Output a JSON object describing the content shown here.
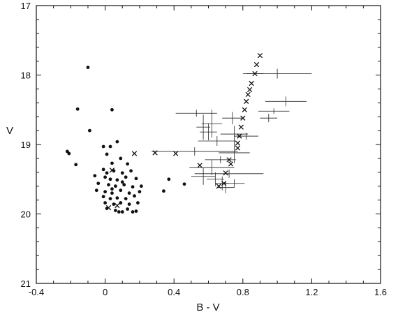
{
  "chart_data": {
    "type": "scatter",
    "title": "",
    "xlabel": "B - V",
    "ylabel": "V",
    "xlim": [
      -0.4,
      1.6
    ],
    "ylim": [
      17,
      21
    ],
    "y_inverted": true,
    "grid": false,
    "xticks": [
      "-0.4",
      "0",
      "0.4",
      "0.8",
      "1.2",
      "1.6"
    ],
    "yticks": [
      "17",
      "18",
      "19",
      "20",
      "21"
    ],
    "xtick_values": [
      -0.4,
      0,
      0.4,
      0.8,
      1.2,
      1.6
    ],
    "ytick_values": [
      17,
      18,
      19,
      20,
      21
    ],
    "marker_styles": {
      "dots": "filled-circle",
      "crosses": "x-with-errorbars"
    },
    "dots": [
      [
        -0.1,
        17.89
      ],
      [
        -0.16,
        18.49
      ],
      [
        0.04,
        18.5
      ],
      [
        -0.09,
        18.8
      ],
      [
        -0.22,
        19.1
      ],
      [
        -0.21,
        19.13
      ],
      [
        -0.17,
        19.29
      ],
      [
        -0.01,
        19.03
      ],
      [
        0.03,
        19.03
      ],
      [
        0.07,
        18.96
      ],
      [
        0.01,
        19.14
      ],
      [
        0.09,
        19.2
      ],
      [
        0.04,
        19.27
      ],
      [
        0.13,
        19.28
      ],
      [
        -0.01,
        19.36
      ],
      [
        0.01,
        19.41
      ],
      [
        0.05,
        19.38
      ],
      [
        0.1,
        19.41
      ],
      [
        0.15,
        19.38
      ],
      [
        -0.06,
        19.45
      ],
      [
        0.0,
        19.47
      ],
      [
        0.03,
        19.5
      ],
      [
        0.07,
        19.51
      ],
      [
        0.12,
        19.47
      ],
      [
        0.18,
        19.49
      ],
      [
        -0.04,
        19.56
      ],
      [
        0.02,
        19.58
      ],
      [
        0.06,
        19.6
      ],
      [
        0.11,
        19.58
      ],
      [
        0.16,
        19.61
      ],
      [
        0.21,
        19.6
      ],
      [
        -0.05,
        19.66
      ],
      [
        0.0,
        19.68
      ],
      [
        0.04,
        19.7
      ],
      [
        0.09,
        19.66
      ],
      [
        0.14,
        19.7
      ],
      [
        0.2,
        19.68
      ],
      [
        -0.01,
        19.75
      ],
      [
        0.03,
        19.78
      ],
      [
        0.07,
        19.77
      ],
      [
        0.12,
        19.78
      ],
      [
        0.17,
        19.74
      ],
      [
        0.0,
        19.84
      ],
      [
        0.05,
        19.86
      ],
      [
        0.09,
        19.84
      ],
      [
        0.14,
        19.86
      ],
      [
        0.19,
        19.84
      ],
      [
        0.01,
        19.92
      ],
      [
        0.06,
        19.95
      ],
      [
        0.1,
        19.97
      ],
      [
        0.13,
        19.93
      ],
      [
        0.18,
        19.96
      ],
      [
        0.08,
        19.97
      ],
      [
        0.16,
        19.97
      ],
      [
        0.04,
        19.64
      ],
      [
        0.1,
        19.54
      ],
      [
        0.34,
        19.67
      ],
      [
        0.37,
        19.5
      ],
      [
        0.46,
        19.57
      ]
    ],
    "crosses": [
      {
        "x": 0.9,
        "y": 17.72,
        "xerr": 0.0,
        "yerr": 0.0
      },
      {
        "x": 0.88,
        "y": 17.85,
        "xerr": 0.0,
        "yerr": 0.0
      },
      {
        "x": 0.87,
        "y": 17.98,
        "xerr": 0.05,
        "yerr": 0.0
      },
      {
        "x": 0.85,
        "y": 18.12,
        "xerr": 0.0,
        "yerr": 0.0
      },
      {
        "x": 0.84,
        "y": 18.21,
        "xerr": 0.0,
        "yerr": 0.0
      },
      {
        "x": 0.83,
        "y": 18.28,
        "xerr": 0.0,
        "yerr": 0.0
      },
      {
        "x": 0.82,
        "y": 18.38,
        "xerr": 0.0,
        "yerr": 0.0
      },
      {
        "x": 0.81,
        "y": 18.5,
        "xerr": 0.0,
        "yerr": 0.0
      },
      {
        "x": 0.8,
        "y": 18.62,
        "xerr": 0.0,
        "yerr": 0.0
      },
      {
        "x": 0.79,
        "y": 18.75,
        "xerr": 0.0,
        "yerr": 0.0
      },
      {
        "x": 0.78,
        "y": 18.88,
        "xerr": 0.0,
        "yerr": 0.0
      },
      {
        "x": 0.77,
        "y": 18.98,
        "xerr": 0.0,
        "yerr": 0.0
      },
      {
        "x": 0.77,
        "y": 19.05,
        "xerr": 0.0,
        "yerr": 0.0
      },
      {
        "x": 0.72,
        "y": 19.22,
        "xerr": 0.0,
        "yerr": 0.0
      },
      {
        "x": 0.73,
        "y": 19.28,
        "xerr": 0.0,
        "yerr": 0.0
      },
      {
        "x": 0.7,
        "y": 19.41,
        "xerr": 0.0,
        "yerr": 0.0
      },
      {
        "x": 0.69,
        "y": 19.56,
        "xerr": 0.0,
        "yerr": 0.0
      },
      {
        "x": 0.66,
        "y": 19.6,
        "xerr": 0.0,
        "yerr": 0.0
      },
      {
        "x": 0.55,
        "y": 19.3,
        "xerr": 0.0,
        "yerr": 0.0
      },
      {
        "x": 0.41,
        "y": 19.13,
        "xerr": 0.0,
        "yerr": 0.0
      },
      {
        "x": 0.29,
        "y": 19.12,
        "xerr": 0.0,
        "yerr": 0.0
      },
      {
        "x": 0.17,
        "y": 19.13,
        "xerr": 0.0,
        "yerr": 0.0
      },
      {
        "x": 0.02,
        "y": 19.91,
        "xerr": 0.0,
        "yerr": 0.0
      },
      {
        "x": 0.07,
        "y": 19.88,
        "xerr": 0.0,
        "yerr": 0.0
      },
      {
        "x": 0.04,
        "y": 19.37,
        "xerr": 0.0,
        "yerr": 0.0
      }
    ],
    "errorbars": [
      {
        "x": 1.0,
        "y": 17.98,
        "xerr": 0.2,
        "yerr": 0.07
      },
      {
        "x": 1.05,
        "y": 18.38,
        "xerr": 0.12,
        "yerr": 0.07
      },
      {
        "x": 0.98,
        "y": 18.52,
        "xerr": 0.09,
        "yerr": 0.04
      },
      {
        "x": 0.95,
        "y": 18.62,
        "xerr": 0.05,
        "yerr": 0.06
      },
      {
        "x": 0.53,
        "y": 18.55,
        "xerr": 0.12,
        "yerr": 0.05
      },
      {
        "x": 0.62,
        "y": 18.7,
        "xerr": 0.06,
        "yerr": 0.2
      },
      {
        "x": 0.74,
        "y": 18.62,
        "xerr": 0.06,
        "yerr": 0.09
      },
      {
        "x": 0.57,
        "y": 18.75,
        "xerr": 0.04,
        "yerr": 0.18
      },
      {
        "x": 0.6,
        "y": 18.82,
        "xerr": 0.05,
        "yerr": 0.12
      },
      {
        "x": 0.75,
        "y": 18.85,
        "xerr": 0.08,
        "yerr": 0.12
      },
      {
        "x": 0.65,
        "y": 18.95,
        "xerr": 0.11,
        "yerr": 0.07
      },
      {
        "x": 0.82,
        "y": 18.88,
        "xerr": 0.07,
        "yerr": 0.05
      },
      {
        "x": 0.52,
        "y": 19.1,
        "xerr": 0.25,
        "yerr": 0.06
      },
      {
        "x": 0.75,
        "y": 19.12,
        "xerr": 0.09,
        "yerr": 0.15
      },
      {
        "x": 0.67,
        "y": 19.22,
        "xerr": 0.09,
        "yerr": 0.05
      },
      {
        "x": 0.62,
        "y": 19.33,
        "xerr": 0.13,
        "yerr": 0.11
      },
      {
        "x": 0.72,
        "y": 19.42,
        "xerr": 0.2,
        "yerr": 0.06
      },
      {
        "x": 0.57,
        "y": 19.46,
        "xerr": 0.07,
        "yerr": 0.12
      },
      {
        "x": 0.64,
        "y": 19.5,
        "xerr": 0.05,
        "yerr": 0.1
      },
      {
        "x": 0.68,
        "y": 19.56,
        "xerr": 0.04,
        "yerr": 0.1
      },
      {
        "x": 0.75,
        "y": 19.56,
        "xerr": 0.06,
        "yerr": 0.06
      },
      {
        "x": 0.7,
        "y": 19.62,
        "xerr": 0.05,
        "yerr": 0.08
      }
    ]
  }
}
